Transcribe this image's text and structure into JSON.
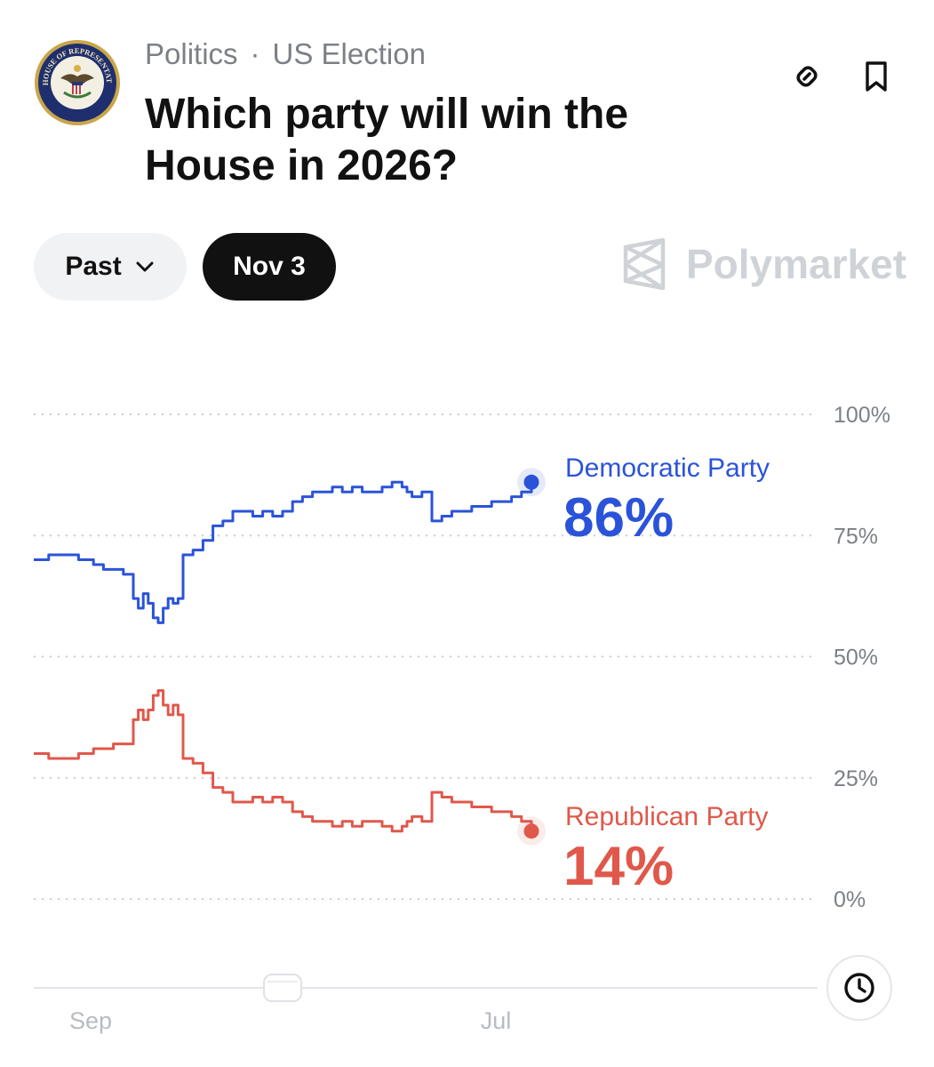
{
  "header": {
    "category": "Politics",
    "separator": "·",
    "subcategory": "US Election",
    "title": "Which party will win the House in 2026?",
    "logo": "us-house-of-representatives-seal",
    "logo_text": "U.S. HOUSE OF REPRESENTATIVES"
  },
  "actions": {
    "link_icon": "link-icon",
    "bookmark_icon": "bookmark-icon"
  },
  "controls": {
    "range_label": "Past",
    "date_label": "Nov 3"
  },
  "brand": {
    "name": "Polymarket"
  },
  "chart_data": {
    "type": "line",
    "x_labels": [
      "Sep",
      "Jul"
    ],
    "y_ticks": [
      "100%",
      "75%",
      "50%",
      "25%",
      "0%"
    ],
    "ylim": [
      0,
      100
    ],
    "grid": true,
    "legend": "inline-right",
    "series": [
      {
        "name": "Democratic Party",
        "current": "86%",
        "color": "#2b53d9",
        "x": [
          0,
          3,
          6,
          9,
          12,
          14,
          16,
          18,
          20,
          21,
          22,
          23,
          24,
          25,
          26,
          27,
          28,
          29,
          30,
          32,
          34,
          36,
          38,
          40,
          42,
          44,
          46,
          48,
          50,
          52,
          54,
          56,
          58,
          60,
          62,
          64,
          66,
          68,
          70,
          72,
          74,
          75,
          76,
          78,
          80,
          82,
          84,
          86,
          88,
          90,
          92,
          94,
          96,
          98,
          100
        ],
        "values": [
          70,
          71,
          71,
          70,
          69,
          68,
          68,
          67,
          62,
          60,
          63,
          61,
          58,
          57,
          60,
          62,
          61,
          62,
          71,
          72,
          74,
          77,
          78,
          80,
          80,
          79,
          80,
          79,
          80,
          82,
          83,
          84,
          84,
          85,
          84,
          85,
          84,
          84,
          85,
          86,
          85,
          84,
          83,
          84,
          78,
          79,
          80,
          80,
          81,
          81,
          82,
          82,
          83,
          84,
          86
        ]
      },
      {
        "name": "Republican Party",
        "current": "14%",
        "color": "#e0584b",
        "x": [
          0,
          3,
          6,
          9,
          12,
          14,
          16,
          18,
          20,
          21,
          22,
          23,
          24,
          25,
          26,
          27,
          28,
          29,
          30,
          32,
          34,
          36,
          38,
          40,
          42,
          44,
          46,
          48,
          50,
          52,
          54,
          56,
          58,
          60,
          62,
          64,
          66,
          68,
          70,
          72,
          74,
          75,
          76,
          78,
          80,
          82,
          84,
          86,
          88,
          90,
          92,
          94,
          96,
          98,
          100
        ],
        "values": [
          30,
          29,
          29,
          30,
          31,
          31,
          32,
          32,
          37,
          39,
          37,
          39,
          42,
          43,
          40,
          38,
          40,
          38,
          29,
          28,
          26,
          23,
          22,
          20,
          20,
          21,
          20,
          21,
          20,
          18,
          17,
          16,
          16,
          15,
          16,
          15,
          16,
          16,
          15,
          14,
          15,
          16,
          17,
          16,
          22,
          21,
          20,
          20,
          19,
          19,
          18,
          18,
          17,
          16,
          14
        ]
      }
    ]
  },
  "history_icon": "clock-icon"
}
